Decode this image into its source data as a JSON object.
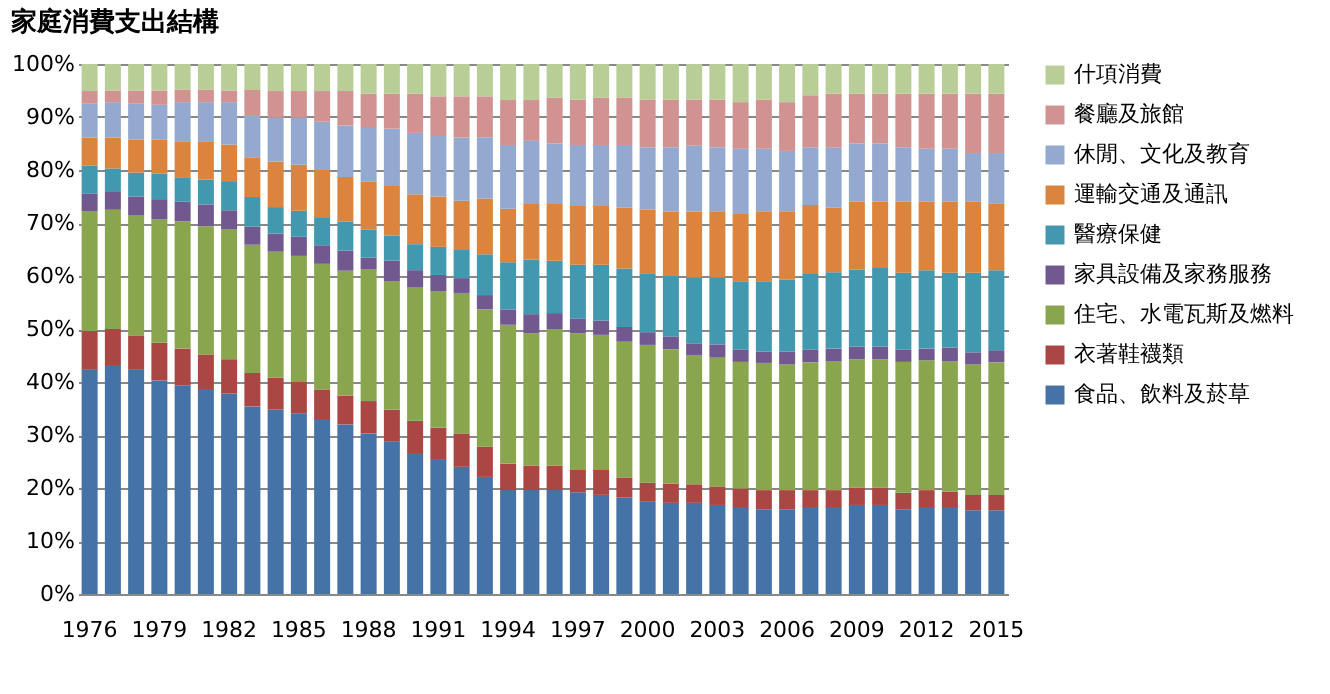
{
  "chart_data": {
    "type": "bar",
    "stacked": true,
    "title": "家庭消費支出結構",
    "categories": [
      "1976",
      null,
      null,
      "1979",
      null,
      null,
      "1982",
      null,
      null,
      "1985",
      null,
      null,
      "1988",
      null,
      null,
      "1991",
      null,
      null,
      "1994",
      null,
      null,
      "1997",
      null,
      null,
      "2000",
      null,
      null,
      "2003",
      null,
      null,
      "2006",
      null,
      null,
      "2009",
      null,
      null,
      "2012",
      null,
      null,
      "2015"
    ],
    "ylim": [
      0,
      100
    ],
    "yticks": [
      {
        "value": 0,
        "label": "0%"
      },
      {
        "value": 10,
        "label": "10%"
      },
      {
        "value": 20,
        "label": "20%"
      },
      {
        "value": 30,
        "label": "30%"
      },
      {
        "value": 40,
        "label": "40%"
      },
      {
        "value": 50,
        "label": "50%"
      },
      {
        "value": 60,
        "label": "60%"
      },
      {
        "value": 70,
        "label": "70%"
      },
      {
        "value": 80,
        "label": "80%"
      },
      {
        "value": 90,
        "label": "90%"
      },
      {
        "value": 100,
        "label": "100%"
      }
    ],
    "grid": "y",
    "legend": "right",
    "series": [
      {
        "name": "食品、飲料及菸草",
        "color": "#4572a7",
        "values": [
          42.3,
          43.2,
          42.3,
          40.3,
          39.4,
          38.5,
          37.8,
          35.4,
          34.8,
          34.1,
          33,
          32,
          30.3,
          28.8,
          26.6,
          25.3,
          24,
          22.1,
          19.6,
          19.6,
          19.6,
          19.2,
          18.7,
          18.2,
          17.4,
          17.2,
          17.2,
          16.8,
          16.4,
          16,
          16,
          16.4,
          16.4,
          16.8,
          16.8,
          16,
          16.4,
          16.4,
          15.8,
          15.8
        ]
      },
      {
        "name": "衣著鞋襪類",
        "color": "#aa4643",
        "values": [
          7.3,
          6.8,
          6.5,
          7.1,
          6.9,
          6.7,
          6.5,
          6.3,
          6.0,
          5.9,
          5.6,
          5.4,
          6.1,
          6.0,
          6.1,
          6.1,
          6.3,
          5.7,
          5.0,
          4.6,
          4.6,
          4.2,
          4.7,
          3.8,
          3.6,
          3.6,
          3.5,
          3.5,
          3.5,
          3.6,
          3.6,
          3.2,
          3.2,
          3.3,
          3.3,
          3.1,
          3.2,
          2.9,
          2.9,
          2.9
        ]
      },
      {
        "name": "住宅、水電瓦斯及燃料",
        "color": "#89a54e",
        "values": [
          22.6,
          22.5,
          22.7,
          23.3,
          24.0,
          24.2,
          24.5,
          24.2,
          23.8,
          23.8,
          23.7,
          23.6,
          24.8,
          24.2,
          25.1,
          25.7,
          26.5,
          25.9,
          26.2,
          25.0,
          25.8,
          25.8,
          25.5,
          25.6,
          26.0,
          25.4,
          24.4,
          24.4,
          23.9,
          24.0,
          23.7,
          24.1,
          24.3,
          24.2,
          24.2,
          24.7,
          24.5,
          24.6,
          24.6,
          25.0
        ]
      },
      {
        "name": "家具設備及家務服務",
        "color": "#71588f",
        "values": [
          3.3,
          3.5,
          3.5,
          3.8,
          3.7,
          4.1,
          3.6,
          3.4,
          3.4,
          3.6,
          3.5,
          3.8,
          2.3,
          3.9,
          3.3,
          3.1,
          2.8,
          2.7,
          2.9,
          3.6,
          3.0,
          2.8,
          2.7,
          2.8,
          2.4,
          2.4,
          2.2,
          2.4,
          2.3,
          2.1,
          2.4,
          2.4,
          2.4,
          2.4,
          2.4,
          2.3,
          2.2,
          2.6,
          2.3,
          2.3
        ]
      },
      {
        "name": "醫療保健",
        "color": "#4198af",
        "values": [
          5.3,
          4.3,
          4.5,
          4.8,
          4.5,
          4.7,
          5.5,
          5.6,
          5.0,
          4.9,
          5.3,
          5.5,
          5.3,
          4.7,
          4.9,
          5.3,
          5.3,
          7.7,
          8.9,
          10.3,
          9.9,
          10.1,
          10.5,
          11.0,
          11.1,
          11.4,
          12.4,
          12.6,
          12.9,
          13.3,
          13.6,
          14.3,
          14.4,
          14.5,
          14.8,
          14.5,
          14.8,
          14.1,
          15.0,
          15.1
        ]
      },
      {
        "name": "運輸交通及通訊",
        "color": "#db843d",
        "values": [
          5.3,
          5.8,
          6.2,
          6.4,
          6.8,
          7.1,
          6.9,
          7.5,
          8.6,
          8.7,
          8.9,
          8.4,
          9.0,
          9.4,
          9.4,
          9.5,
          9.3,
          10.5,
          10.1,
          10.5,
          10.7,
          11.1,
          11.1,
          11.5,
          12.0,
          12.1,
          12.4,
          12.5,
          12.7,
          13.2,
          12.9,
          13.0,
          12.2,
          12.8,
          12.5,
          13.4,
          12.9,
          13.4,
          13.4,
          12.5
        ]
      },
      {
        "name": "休閒、文化及教育",
        "color": "#93a9cf",
        "values": [
          6.4,
          6.7,
          6.8,
          6.6,
          7.5,
          7.5,
          8.0,
          7.8,
          8.3,
          8.9,
          9.1,
          9.7,
          10.3,
          10.8,
          11.6,
          11.4,
          11.9,
          11.6,
          12.0,
          11.9,
          11.4,
          11.5,
          11.5,
          11.8,
          11.8,
          12.2,
          12.5,
          12.1,
          12.3,
          11.8,
          11.4,
          10.9,
          11.3,
          11.0,
          11.0,
          10.3,
          10.0,
          10.0,
          9.2,
          9.6
        ]
      },
      {
        "name": "餐廳及旅館",
        "color": "#d19392",
        "values": [
          2.4,
          2.2,
          2.5,
          2.7,
          2.4,
          2.4,
          2.2,
          4.9,
          5.0,
          5.0,
          5.8,
          6.5,
          6.3,
          6.6,
          7.4,
          7.5,
          7.8,
          7.7,
          8.5,
          7.7,
          8.6,
          8.6,
          8.9,
          8.9,
          9.0,
          9.0,
          8.7,
          9.0,
          8.8,
          9.3,
          9.2,
          9.8,
          10.2,
          9.4,
          9.4,
          10.1,
          10.4,
          10.4,
          11.2,
          11.2
        ]
      },
      {
        "name": "什項消費",
        "color": "#b9cd96",
        "values": [
          5.1,
          5.0,
          5.0,
          5.0,
          4.8,
          4.8,
          5.0,
          4.9,
          5.1,
          5.1,
          5.1,
          5.1,
          5.6,
          5.6,
          5.6,
          6.1,
          6.1,
          6.1,
          6.8,
          6.8,
          6.4,
          6.7,
          6.4,
          6.4,
          6.7,
          6.7,
          6.7,
          6.7,
          7.2,
          6.7,
          7.2,
          5.9,
          5.6,
          5.6,
          5.6,
          5.6,
          5.6,
          5.6,
          5.6,
          5.6
        ]
      }
    ]
  }
}
